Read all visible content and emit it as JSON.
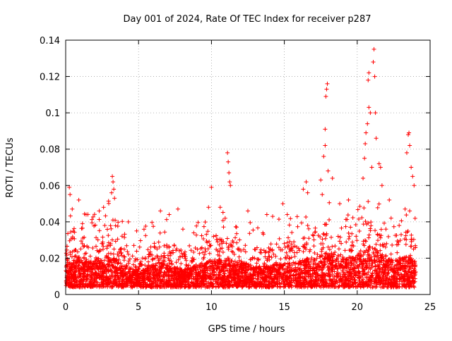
{
  "chart_data": {
    "type": "scatter",
    "title": "Day 001 of 2024, Rate Of TEC Index for receiver p287",
    "xlabel": "GPS time / hours",
    "ylabel": "ROTI / TECUs",
    "xlim": [
      0,
      25
    ],
    "ylim": [
      0,
      0.14
    ],
    "xticks": [
      0,
      5,
      10,
      15,
      20,
      25
    ],
    "xtick_labels": [
      "0",
      "5",
      "10",
      "15",
      "20",
      "25"
    ],
    "yticks": [
      0,
      0.02,
      0.04,
      0.06,
      0.08,
      0.1,
      0.12,
      0.14
    ],
    "ytick_labels": [
      "0",
      "0.02",
      "0.04",
      "0.06",
      "0.08",
      "0.1",
      "0.12",
      "0.14"
    ],
    "grid": true,
    "marker": "plus",
    "series_color": "#ff0000",
    "grid_color": "#a0a0a0",
    "density_profile": {
      "hours": [
        0,
        0.5,
        1,
        1.5,
        2,
        2.5,
        3,
        3.5,
        4,
        4.5,
        5,
        5.5,
        6,
        6.5,
        7,
        7.5,
        8,
        8.5,
        9,
        9.5,
        10,
        10.5,
        11,
        11.5,
        12,
        12.5,
        13,
        13.5,
        14,
        14.5,
        15,
        15.5,
        16,
        16.5,
        17,
        17.5,
        18,
        18.5,
        19,
        19.5,
        20,
        20.5,
        21,
        21.5,
        22,
        22.5,
        23,
        23.5,
        24
      ],
      "typical_upper_roti": [
        0.03,
        0.032,
        0.035,
        0.03,
        0.032,
        0.034,
        0.04,
        0.032,
        0.026,
        0.024,
        0.022,
        0.024,
        0.028,
        0.03,
        0.027,
        0.025,
        0.024,
        0.024,
        0.027,
        0.03,
        0.031,
        0.032,
        0.034,
        0.031,
        0.03,
        0.028,
        0.026,
        0.026,
        0.027,
        0.028,
        0.03,
        0.028,
        0.031,
        0.033,
        0.034,
        0.036,
        0.04,
        0.04,
        0.035,
        0.034,
        0.036,
        0.04,
        0.045,
        0.038,
        0.033,
        0.032,
        0.034,
        0.036,
        0.03
      ]
    },
    "notable_points": [
      {
        "x": 0.25,
        "y": 0.059
      },
      {
        "x": 0.3,
        "y": 0.055
      },
      {
        "x": 0.45,
        "y": 0.047
      },
      {
        "x": 0.9,
        "y": 0.052
      },
      {
        "x": 1.4,
        "y": 0.044
      },
      {
        "x": 2.3,
        "y": 0.046
      },
      {
        "x": 2.6,
        "y": 0.048
      },
      {
        "x": 3.2,
        "y": 0.065
      },
      {
        "x": 3.25,
        "y": 0.062
      },
      {
        "x": 3.3,
        "y": 0.058
      },
      {
        "x": 3.15,
        "y": 0.056
      },
      {
        "x": 3.35,
        "y": 0.053
      },
      {
        "x": 4.3,
        "y": 0.04
      },
      {
        "x": 6.5,
        "y": 0.046
      },
      {
        "x": 7.1,
        "y": 0.044
      },
      {
        "x": 7.7,
        "y": 0.047
      },
      {
        "x": 9.8,
        "y": 0.048
      },
      {
        "x": 10.0,
        "y": 0.059
      },
      {
        "x": 10.6,
        "y": 0.048
      },
      {
        "x": 11.1,
        "y": 0.078
      },
      {
        "x": 11.15,
        "y": 0.073
      },
      {
        "x": 11.2,
        "y": 0.067
      },
      {
        "x": 11.25,
        "y": 0.062
      },
      {
        "x": 11.3,
        "y": 0.06
      },
      {
        "x": 12.5,
        "y": 0.046
      },
      {
        "x": 13.8,
        "y": 0.044
      },
      {
        "x": 14.2,
        "y": 0.043
      },
      {
        "x": 14.9,
        "y": 0.05
      },
      {
        "x": 15.2,
        "y": 0.044
      },
      {
        "x": 16.3,
        "y": 0.058
      },
      {
        "x": 16.5,
        "y": 0.062
      },
      {
        "x": 16.6,
        "y": 0.056
      },
      {
        "x": 17.5,
        "y": 0.063
      },
      {
        "x": 17.6,
        "y": 0.055
      },
      {
        "x": 17.8,
        "y": 0.091
      },
      {
        "x": 17.7,
        "y": 0.076
      },
      {
        "x": 17.8,
        "y": 0.082
      },
      {
        "x": 17.85,
        "y": 0.109
      },
      {
        "x": 17.9,
        "y": 0.113
      },
      {
        "x": 17.95,
        "y": 0.116
      },
      {
        "x": 18.0,
        "y": 0.068
      },
      {
        "x": 18.3,
        "y": 0.064
      },
      {
        "x": 18.8,
        "y": 0.05
      },
      {
        "x": 19.4,
        "y": 0.052
      },
      {
        "x": 20.4,
        "y": 0.064
      },
      {
        "x": 20.5,
        "y": 0.075
      },
      {
        "x": 20.55,
        "y": 0.083
      },
      {
        "x": 20.6,
        "y": 0.089
      },
      {
        "x": 20.7,
        "y": 0.094
      },
      {
        "x": 20.8,
        "y": 0.103
      },
      {
        "x": 20.75,
        "y": 0.118
      },
      {
        "x": 20.8,
        "y": 0.122
      },
      {
        "x": 20.9,
        "y": 0.1
      },
      {
        "x": 21.0,
        "y": 0.07
      },
      {
        "x": 21.1,
        "y": 0.128
      },
      {
        "x": 21.15,
        "y": 0.135
      },
      {
        "x": 21.2,
        "y": 0.12
      },
      {
        "x": 21.25,
        "y": 0.1
      },
      {
        "x": 21.3,
        "y": 0.086
      },
      {
        "x": 21.5,
        "y": 0.072
      },
      {
        "x": 21.6,
        "y": 0.07
      },
      {
        "x": 21.7,
        "y": 0.06
      },
      {
        "x": 22.2,
        "y": 0.052
      },
      {
        "x": 23.4,
        "y": 0.078
      },
      {
        "x": 23.5,
        "y": 0.088
      },
      {
        "x": 23.55,
        "y": 0.089
      },
      {
        "x": 23.6,
        "y": 0.082
      },
      {
        "x": 23.7,
        "y": 0.07
      },
      {
        "x": 23.8,
        "y": 0.065
      },
      {
        "x": 23.9,
        "y": 0.06
      },
      {
        "x": 23.6,
        "y": 0.046
      }
    ]
  }
}
